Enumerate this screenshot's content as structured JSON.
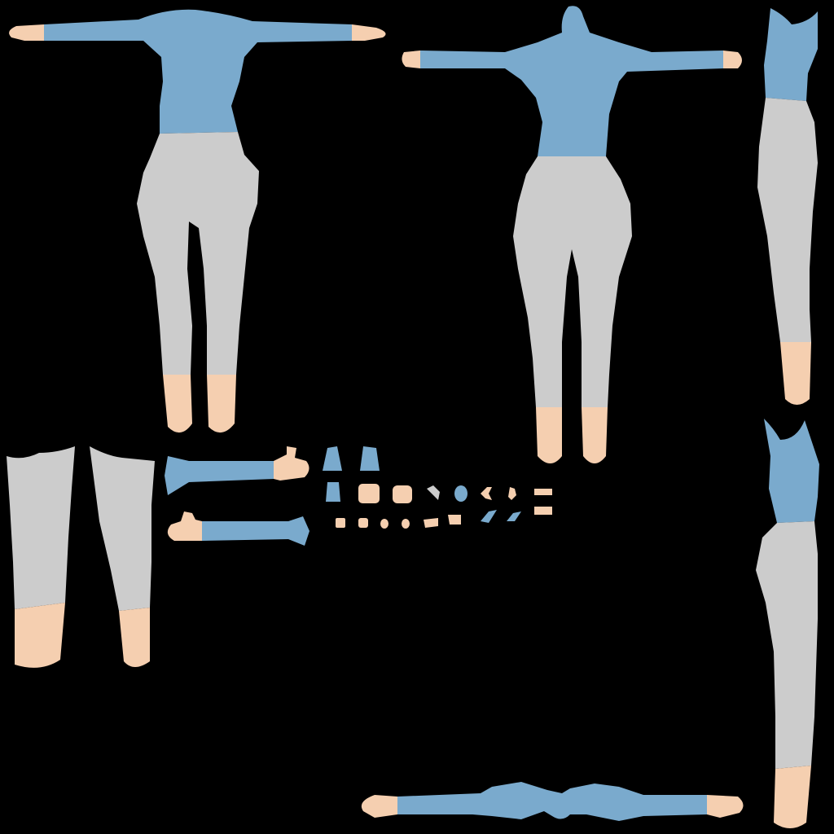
{
  "title": "",
  "colors": {
    "background": "#000000",
    "shirt": "#7aaacd",
    "pants": "#cccccc",
    "skin": "#f5cfb0"
  },
  "islands": [
    "front-body",
    "back-body",
    "side-body-top",
    "legs-pair",
    "sleeve-upper",
    "sleeve-lower",
    "small-pieces",
    "side-body-bottom",
    "top-view-arms"
  ]
}
